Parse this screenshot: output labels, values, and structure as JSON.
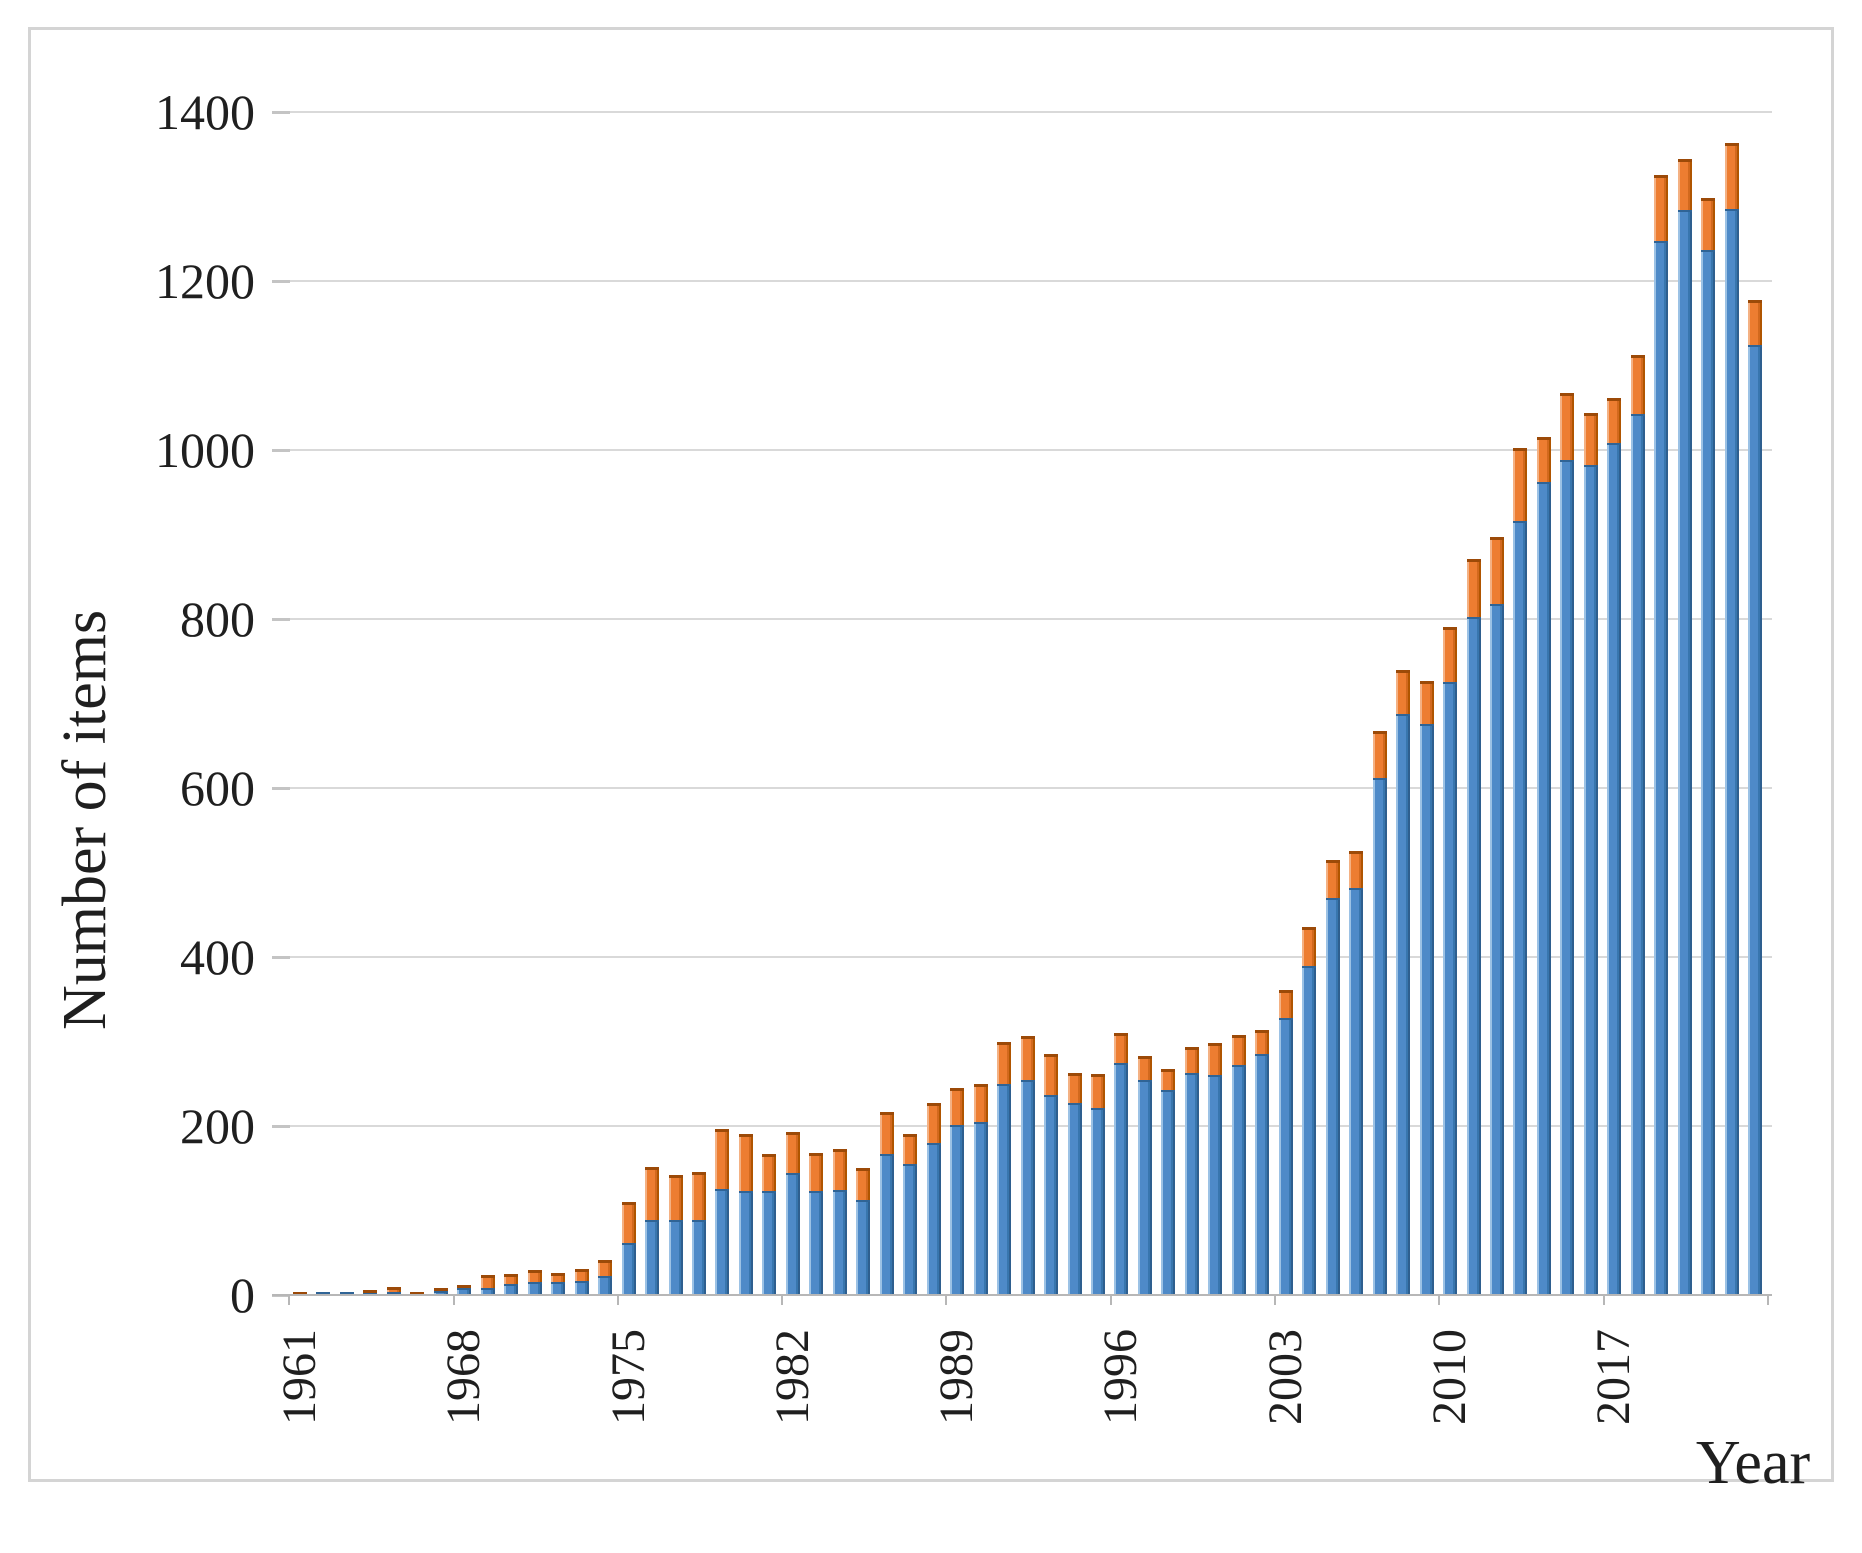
{
  "figure": {
    "title": "",
    "y_axis_title": "Number of items",
    "x_axis_title": "Year"
  },
  "chart_data": {
    "type": "bar",
    "stacked": true,
    "title": "",
    "xlabel": "Year",
    "ylabel": "Number of items",
    "ylim": [
      0,
      1400
    ],
    "grid": "horizontal",
    "legend": "none",
    "y_ticks": [
      0,
      200,
      400,
      600,
      800,
      1000,
      1200,
      1400
    ],
    "x_tick_years": [
      1961,
      1968,
      1975,
      1982,
      1989,
      1996,
      2003,
      2010,
      2017
    ],
    "categories": [
      1961,
      1962,
      1963,
      1964,
      1965,
      1966,
      1967,
      1968,
      1969,
      1970,
      1971,
      1972,
      1973,
      1974,
      1975,
      1976,
      1977,
      1978,
      1979,
      1980,
      1981,
      1982,
      1983,
      1984,
      1985,
      1986,
      1987,
      1988,
      1989,
      1990,
      1991,
      1992,
      1993,
      1994,
      1995,
      1996,
      1997,
      1998,
      1999,
      2000,
      2001,
      2002,
      2003,
      2004,
      2005,
      2006,
      2007,
      2008,
      2009,
      2010,
      2011,
      2012,
      2013,
      2014,
      2015,
      2016,
      2017,
      2018,
      2019,
      2020,
      2021,
      2022,
      2023
    ],
    "series": [
      {
        "name": "blue",
        "color": "#4e8ac8",
        "values": [
          1,
          3,
          3,
          2,
          4,
          1,
          5,
          8,
          8,
          13,
          15,
          15,
          17,
          22,
          62,
          89,
          89,
          89,
          126,
          123,
          123,
          144,
          123,
          124,
          112,
          167,
          155,
          180,
          201,
          205,
          250,
          255,
          237,
          227,
          221,
          274,
          254,
          243,
          263,
          260,
          272,
          285,
          328,
          389,
          470,
          482,
          612,
          688,
          676,
          726,
          802,
          818,
          916,
          962,
          988,
          982,
          1008,
          1043,
          1247,
          1284,
          1237,
          1285,
          1124
        ]
      },
      {
        "name": "orange",
        "color": "#ed7d31",
        "values": [
          2,
          0,
          0,
          4,
          5,
          3,
          3,
          4,
          16,
          12,
          15,
          11,
          14,
          20,
          48,
          63,
          53,
          57,
          70,
          67,
          44,
          49,
          45,
          49,
          38,
          50,
          35,
          47,
          44,
          45,
          50,
          52,
          48,
          36,
          41,
          36,
          29,
          25,
          31,
          38,
          36,
          29,
          33,
          47,
          45,
          44,
          56,
          52,
          51,
          64,
          69,
          79,
          86,
          53,
          79,
          62,
          54,
          69,
          78,
          60,
          61,
          78,
          53
        ]
      }
    ],
    "colors": {
      "blue": "#4e8ac8",
      "blue_light": "#9cc2e5",
      "blue_mid_dark": "#3876ae",
      "blue_dark": "#2e5f8f",
      "blue_cap": "#2f6496",
      "orange": "#ed7d31",
      "orange_light": "#f4b183",
      "orange_mid_dark": "#d2691e",
      "orange_dark": "#b05500",
      "orange_cap": "#9c4a08",
      "gridline": "#d9d9d9",
      "axis_line": "#b7b7b7",
      "tick": "#c4c4c4",
      "text": "#1f1f1f",
      "border": "#d4d4d4",
      "background": "#ffffff"
    }
  }
}
